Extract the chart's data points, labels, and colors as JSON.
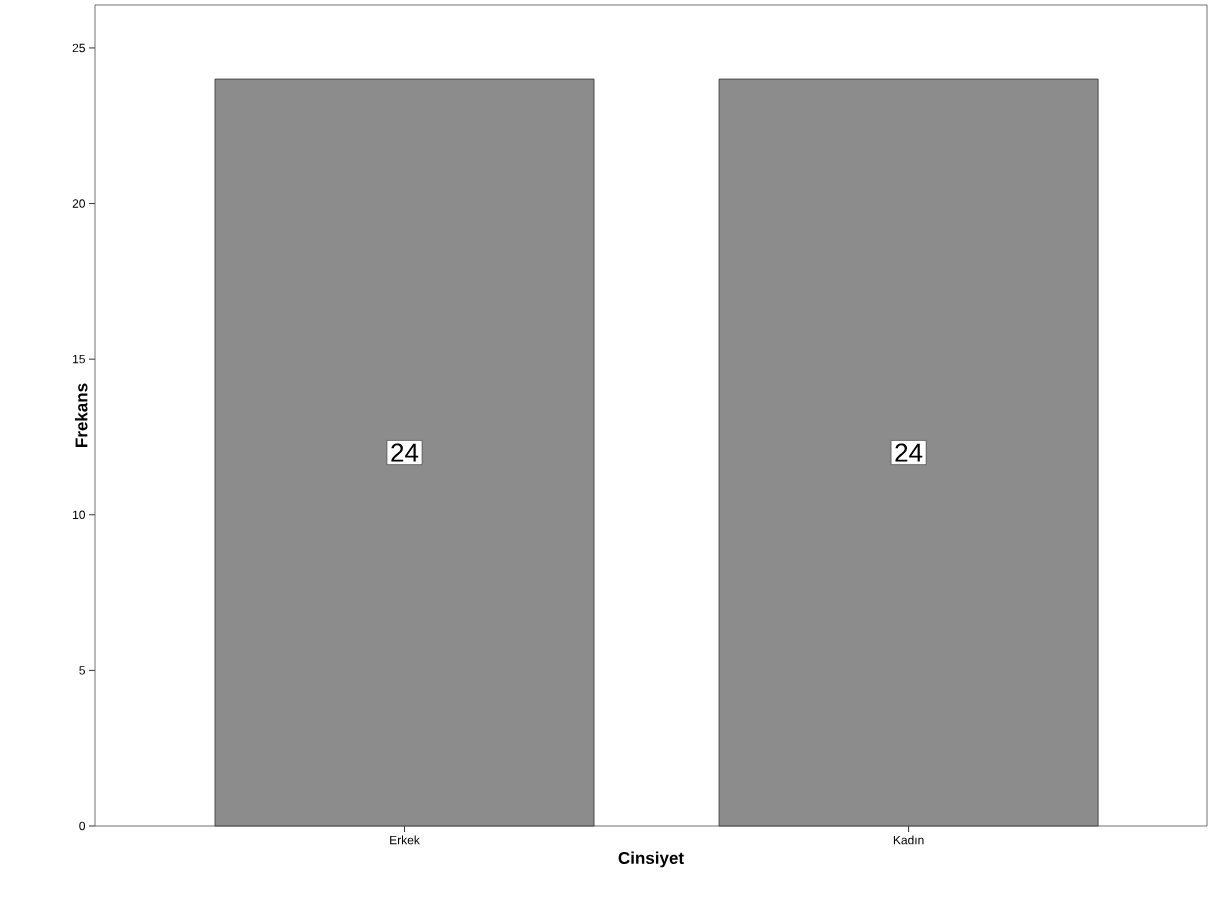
{
  "chart_data": {
    "type": "bar",
    "xlabel": "Cinsiyet",
    "ylabel": "Frekans",
    "categories": [
      "Erkek",
      "Kadın"
    ],
    "values": [
      24,
      24
    ],
    "color": "#8c8c8c",
    "ylim": [
      0,
      26.38
    ],
    "yticks": [
      0,
      5,
      10,
      15,
      20,
      25
    ],
    "data_labels": true,
    "grid": false
  }
}
